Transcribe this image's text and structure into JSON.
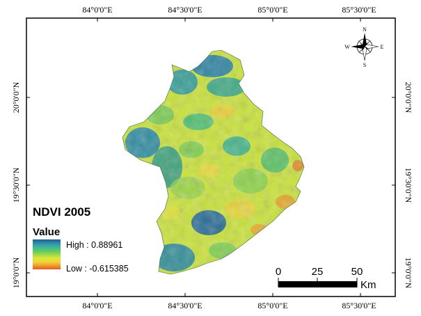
{
  "map": {
    "title": "NDVI 2005",
    "legend": {
      "heading": "Value",
      "high_label": "High : 0.88961",
      "low_label": "Low : -0.615385",
      "ramp_colors": [
        "#1f5f8b",
        "#2e8bb0",
        "#3fb39a",
        "#5bc86a",
        "#9ad84a",
        "#d9e83a",
        "#f1d43a",
        "#ee9a2a",
        "#e0582a"
      ]
    },
    "axes": {
      "top_ticks": [
        "84°0'0\"E",
        "84°30'0\"E",
        "85°0'0\"E",
        "85°30'0\"E"
      ],
      "bottom_ticks": [
        "84°0'0\"E",
        "84°30'0\"E",
        "85°0'0\"E",
        "85°30'0\"E"
      ],
      "left_ticks": [
        "20°0'0\"N",
        "19°30'0\"N",
        "19°0'0\"N"
      ],
      "right_ticks": [
        "20°0'0\"N",
        "19°30'0\"N",
        "19°0'0\"N"
      ]
    },
    "scale_bar": {
      "labels": [
        "0",
        "25",
        "50"
      ],
      "unit": "Km"
    },
    "compass": {
      "n": "N",
      "s": "S",
      "e": "E",
      "w": "W"
    }
  }
}
